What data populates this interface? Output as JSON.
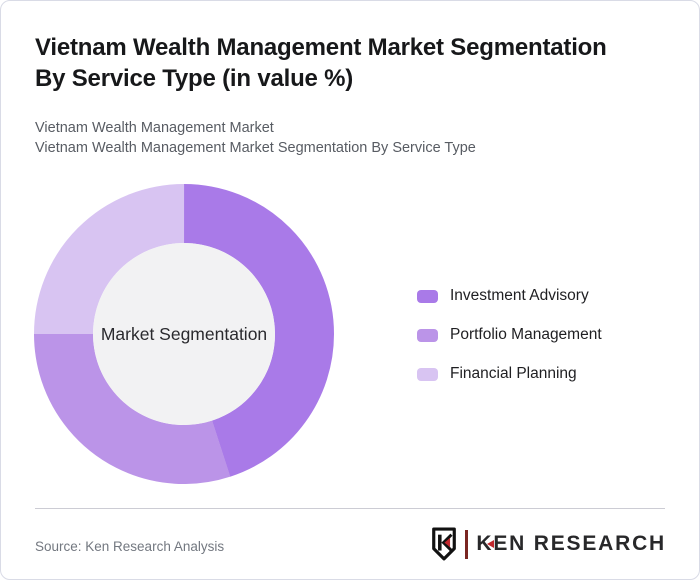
{
  "header": {
    "title_lines": [
      "Vietnam Wealth Management Market Segmentation",
      "By Service Type (in value %)"
    ],
    "subtitle_lines": [
      "Vietnam Wealth Management Market",
      "Vietnam Wealth Management Market Segmentation By Service Type"
    ]
  },
  "chart_data": {
    "type": "pie",
    "variant": "donut",
    "title": "Vietnam Wealth Management Market Segmentation By Service Type (in value %)",
    "center_label": "Market Segmentation",
    "categories": [
      "Investment Advisory",
      "Portfolio Management",
      "Financial Planning"
    ],
    "values": [
      45,
      30,
      25
    ],
    "unit": "value %",
    "colors": [
      "#a97ae8",
      "#bb94e8",
      "#d8c4f2"
    ],
    "inner_hole_color": "#f2f2f3",
    "legend_position": "right",
    "start_angle_deg": 0,
    "direction": "clockwise"
  },
  "footer": {
    "source": "Source: Ken Research Analysis",
    "logo": {
      "icon": "ken-research-shield-k-icon",
      "text_first_letter": "K",
      "text_rest": "EN RESEARCH",
      "red": "#c0272d"
    }
  },
  "colors": {
    "card_border": "#d9dbe6",
    "divider": "#ccccd4",
    "title_text": "#17181a",
    "subtitle_text": "#585c63",
    "source_text": "#737880",
    "logo_text": "#28282a"
  }
}
